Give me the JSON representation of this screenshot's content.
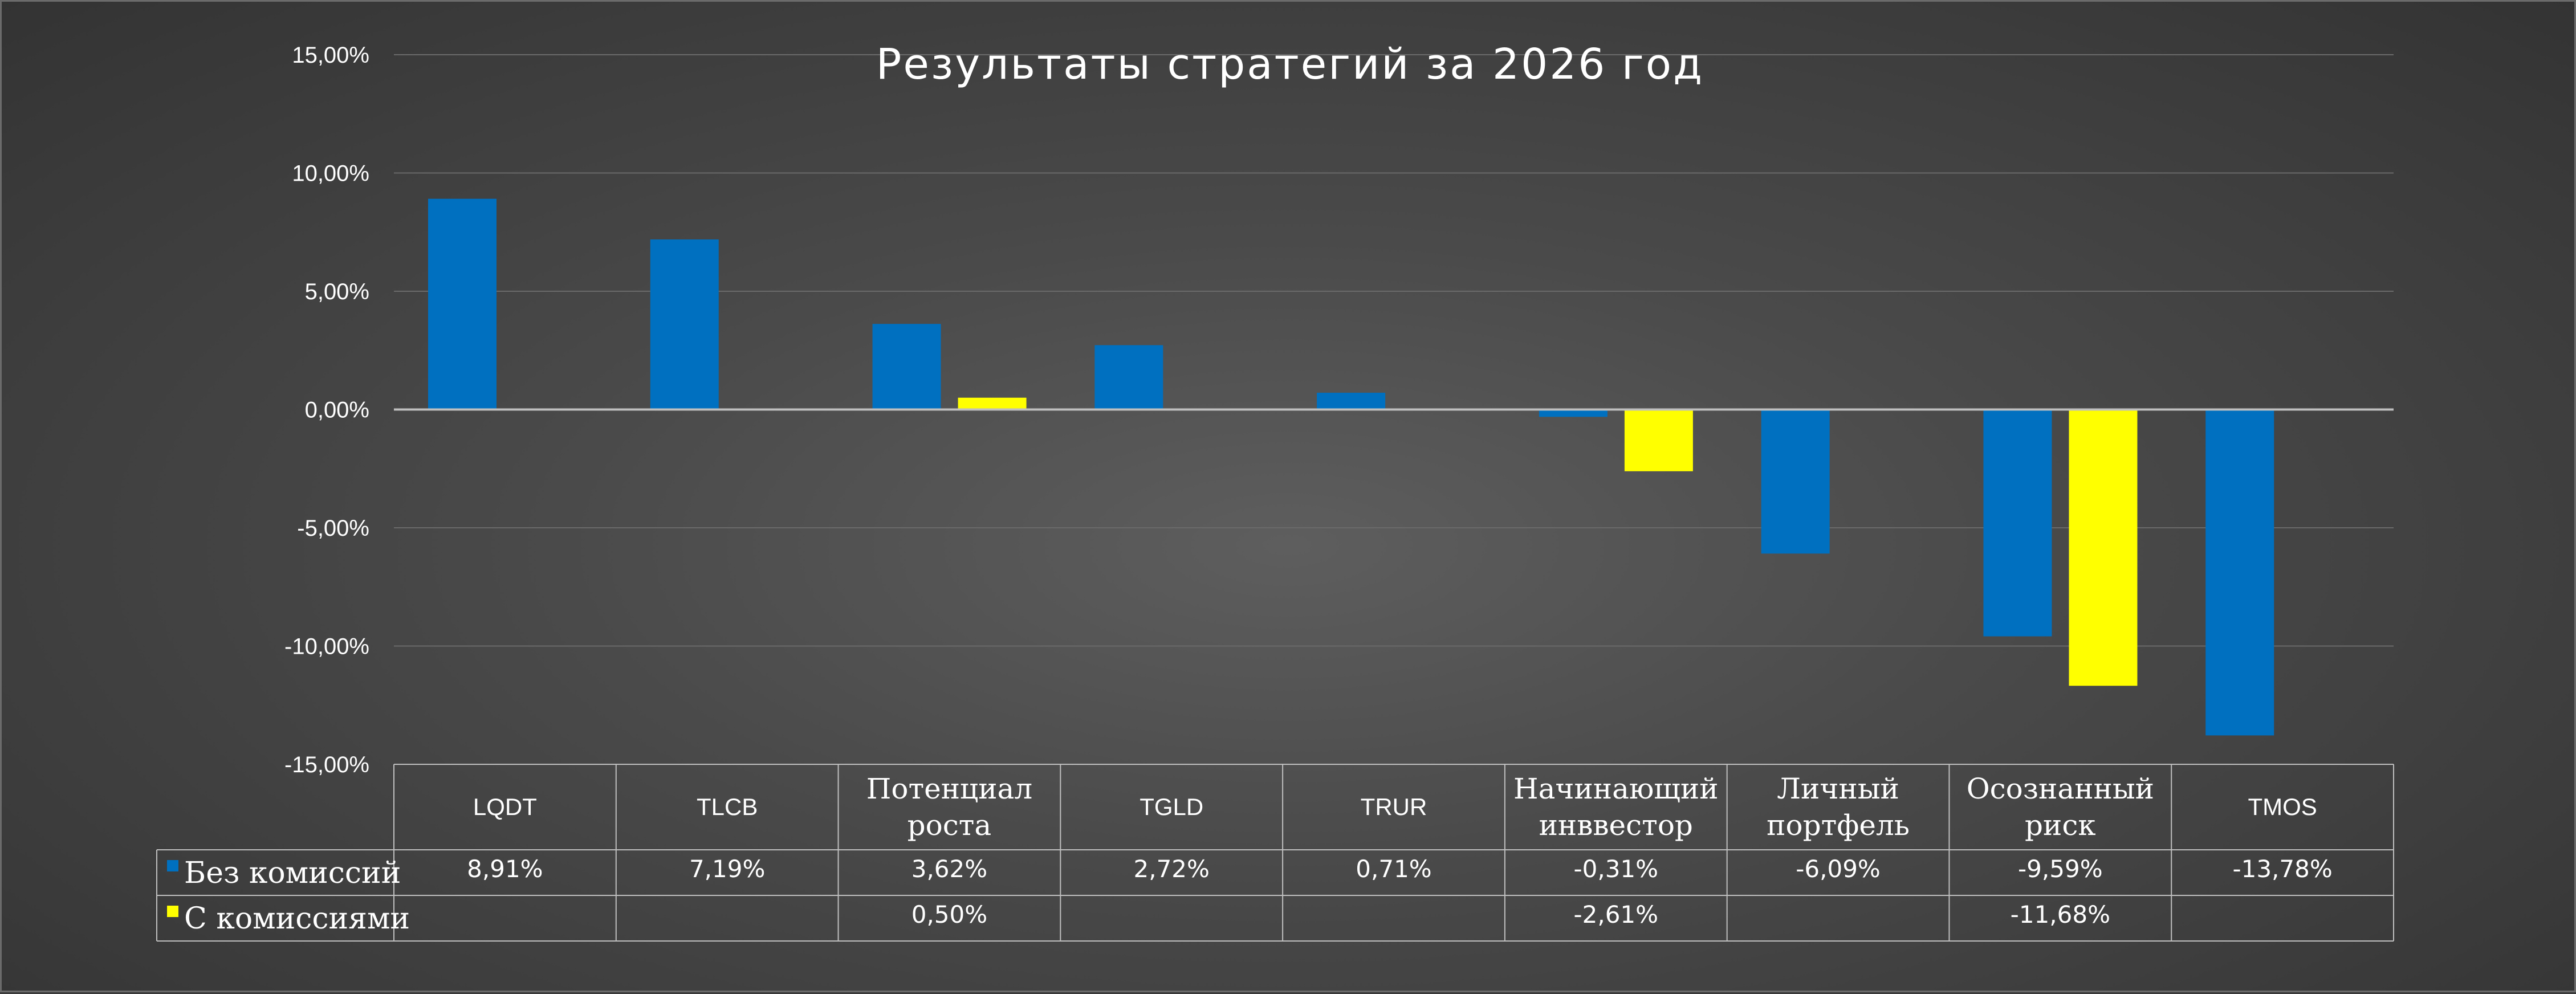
{
  "chart_data": {
    "type": "bar",
    "title": "Результаты стратегий за 2026 год",
    "categories": [
      [
        "LQDT"
      ],
      [
        "TLCB"
      ],
      [
        "Потенциал",
        "роста"
      ],
      [
        "TGLD"
      ],
      [
        "TRUR"
      ],
      [
        "Начинающий",
        "инввестор"
      ],
      [
        "Личный",
        "портфель"
      ],
      [
        "Осознанный",
        "риск"
      ],
      [
        "TMOS"
      ]
    ],
    "series": [
      {
        "name": "Без комиссий",
        "color": "#0070C0",
        "values": [
          8.91,
          7.19,
          3.62,
          2.72,
          0.71,
          -0.31,
          -6.09,
          -9.59,
          -13.78
        ],
        "labels": [
          "8,91%",
          "7,19%",
          "3,62%",
          "2,72%",
          "0,71%",
          "-0,31%",
          "-6,09%",
          "-9,59%",
          "-13,78%"
        ]
      },
      {
        "name": "С комиссиями",
        "color": "#FFFF00",
        "values": [
          null,
          null,
          0.5,
          null,
          null,
          -2.61,
          null,
          -11.68,
          null
        ],
        "labels": [
          "",
          "",
          "0,50%",
          "",
          "",
          "-2,61%",
          "",
          "-11,68%",
          ""
        ]
      }
    ],
    "ylim": [
      -15,
      15
    ],
    "yticks": [
      15,
      10,
      5,
      0,
      -5,
      -10,
      -15
    ],
    "ytick_labels": [
      "15,00%",
      "10,00%",
      "5,00%",
      "0,00%",
      "-5,00%",
      "-10,00%",
      "-15,00%"
    ],
    "grid": true,
    "legend": "data-table"
  }
}
